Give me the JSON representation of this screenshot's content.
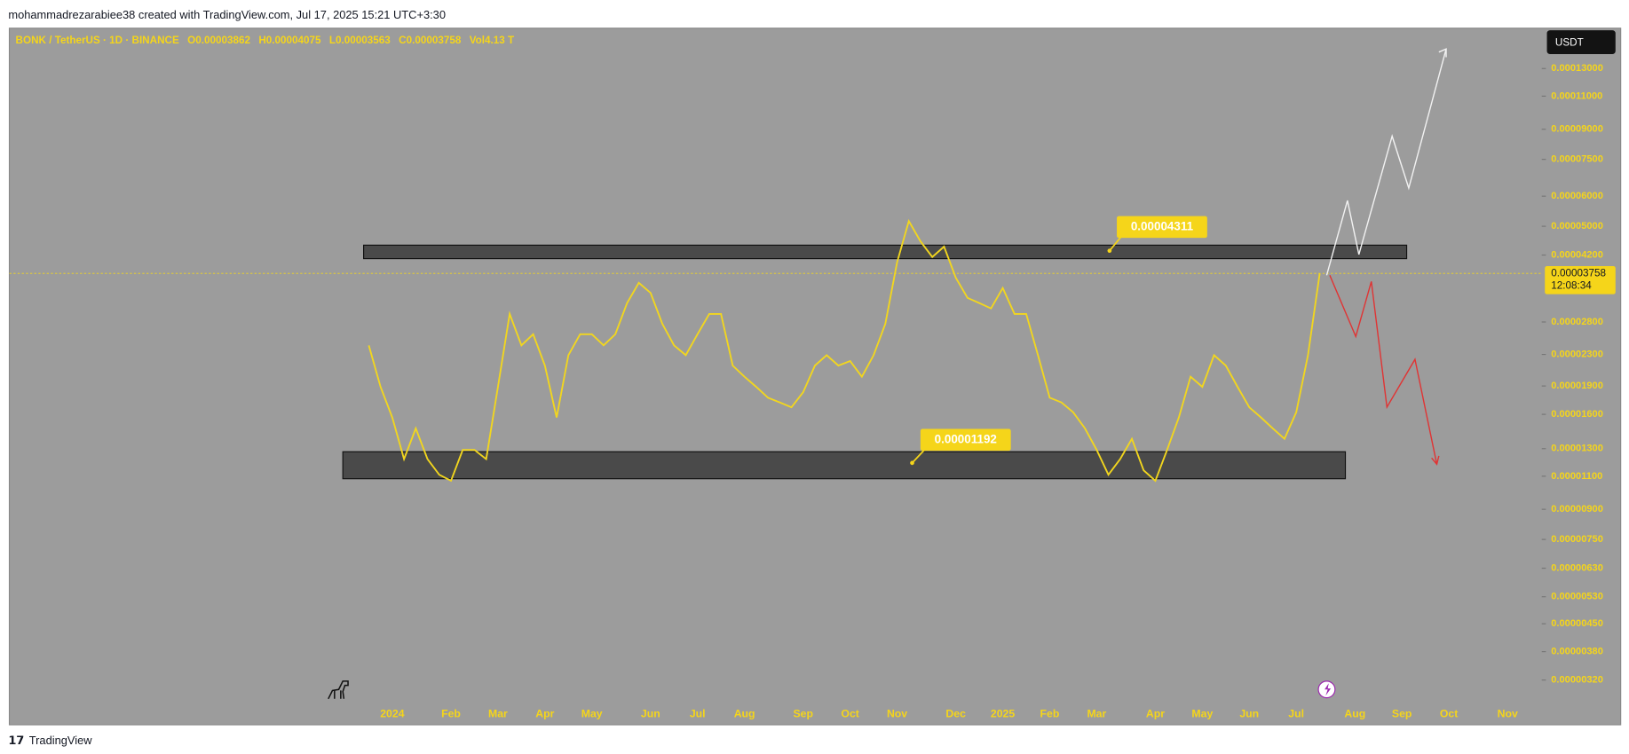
{
  "header": {
    "credit": "mohammadrezarabiee38 created with TradingView.com, Jul 17, 2025 15:21 UTC+3:30"
  },
  "footer": {
    "brand": "TradingView"
  },
  "chart_data": {
    "type": "line",
    "symbol": "BONK / TetherUS · 1D · BINANCE",
    "legend_items": [
      "O0.00003862",
      "H0.00004075",
      "L0.00003563",
      "C0.00003758",
      "Vol4.13 T"
    ],
    "currency": "USDT",
    "log_scale": true,
    "color": "#f2d61e",
    "categories": [
      null,
      null,
      "2024",
      null,
      null,
      null,
      null,
      "Feb",
      null,
      null,
      null,
      "Mar",
      null,
      null,
      null,
      "Apr",
      null,
      null,
      null,
      "May",
      null,
      null,
      null,
      null,
      "Jun",
      null,
      null,
      null,
      "Jul",
      null,
      null,
      null,
      "Aug",
      null,
      null,
      null,
      null,
      "Sep",
      null,
      null,
      null,
      "Oct",
      null,
      null,
      null,
      "Nov",
      null,
      null,
      null,
      null,
      "Dec",
      null,
      null,
      null,
      "2025",
      null,
      null,
      null,
      "Feb",
      null,
      null,
      null,
      "Mar",
      null,
      null,
      null,
      null,
      "Apr",
      null,
      null,
      null,
      "May",
      null,
      null,
      null,
      "Jun",
      null,
      null,
      null,
      "Jul",
      null,
      null,
      null,
      null,
      "Aug",
      null,
      null,
      null,
      "Sep",
      null,
      null,
      null,
      "Oct",
      null,
      null,
      null,
      null,
      "Nov",
      null,
      null
    ],
    "values": [
      2.43e-05,
      1.89e-05,
      1.57e-05,
      1.22e-05,
      1.47e-05,
      1.22e-05,
      1.11e-05,
      1.07e-05,
      1.29e-05,
      1.29e-05,
      1.22e-05,
      1.89e-05,
      2.94e-05,
      2.43e-05,
      2.6e-05,
      2.15e-05,
      1.57e-05,
      2.29e-05,
      2.6e-05,
      2.6e-05,
      2.43e-05,
      2.6e-05,
      3.14e-05,
      3.55e-05,
      3.34e-05,
      2.77e-05,
      2.43e-05,
      2.29e-05,
      2.6e-05,
      2.94e-05,
      2.94e-05,
      2.15e-05,
      2.01e-05,
      1.89e-05,
      1.77e-05,
      1.72e-05,
      1.67e-05,
      1.83e-05,
      2.15e-05,
      2.29e-05,
      2.15e-05,
      2.21e-05,
      2.01e-05,
      2.29e-05,
      2.77e-05,
      4.02e-05,
      5.16e-05,
      4.56e-05,
      4.15e-05,
      4.42e-05,
      3.66e-05,
      3.24e-05,
      3.14e-05,
      3.04e-05,
      3.44e-05,
      2.94e-05,
      2.94e-05,
      2.29e-05,
      1.77e-05,
      1.72e-05,
      1.62e-05,
      1.47e-05,
      1.29e-05,
      1.11e-05,
      1.22e-05,
      1.38e-05,
      1.14e-05,
      1.07e-05,
      1.29e-05,
      1.57e-05,
      2.01e-05,
      1.89e-05,
      2.29e-05,
      2.15e-05,
      1.89e-05,
      1.67e-05,
      1.57e-05,
      1.47e-05,
      1.38e-05,
      1.62e-05,
      2.29e-05,
      3.758e-05,
      null,
      null,
      null,
      null,
      null,
      null,
      null,
      null,
      null,
      null,
      null,
      null,
      null,
      null,
      null,
      null,
      null,
      null
    ],
    "ylim": [
      2.82e-06,
      0.000166
    ],
    "yticks": [
      {
        "value": 0.00013,
        "label": "0.00013000"
      },
      {
        "value": 0.00011,
        "label": "0.00011000"
      },
      {
        "value": 9e-05,
        "label": "0.00009000"
      },
      {
        "value": 7.5e-05,
        "label": "0.00007500"
      },
      {
        "value": 6e-05,
        "label": "0.00006000"
      },
      {
        "value": 5e-05,
        "label": "0.00005000"
      },
      {
        "value": 4.2e-05,
        "label": "0.00004200"
      },
      {
        "value": 2.8e-05,
        "label": "0.00002800"
      },
      {
        "value": 2.3e-05,
        "label": "0.00002300"
      },
      {
        "value": 1.9e-05,
        "label": "0.00001900"
      },
      {
        "value": 1.6e-05,
        "label": "0.00001600"
      },
      {
        "value": 1.3e-05,
        "label": "0.00001300"
      },
      {
        "value": 1.1e-05,
        "label": "0.00001100"
      },
      {
        "value": 9e-06,
        "label": "0.00000900"
      },
      {
        "value": 7.5e-06,
        "label": "0.00000750"
      },
      {
        "value": 6.3e-06,
        "label": "0.00000630"
      },
      {
        "value": 5.3e-06,
        "label": "0.00000530"
      },
      {
        "value": 4.5e-06,
        "label": "0.00000450"
      },
      {
        "value": 3.8e-06,
        "label": "0.00000380"
      },
      {
        "value": 3.2e-06,
        "label": "0.00000320"
      }
    ],
    "last_price": 3.758e-05,
    "countdown": "12:08:34",
    "annotations": [
      4.311e-05,
      1.192e-05
    ]
  }
}
